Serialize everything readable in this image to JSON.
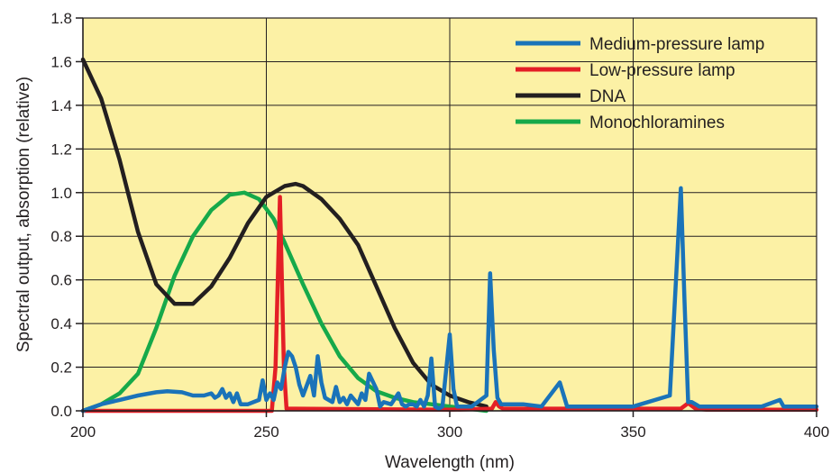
{
  "chart_data": {
    "type": "line",
    "xlabel": "Wavelength (nm)",
    "ylabel": "Spectral output, absorption (relative)",
    "xlim": [
      200,
      400
    ],
    "ylim": [
      0,
      1.8
    ],
    "x_ticks": [
      200,
      250,
      300,
      350,
      400
    ],
    "y_ticks": [
      0.0,
      0.2,
      0.4,
      0.6,
      0.8,
      1.0,
      1.2,
      1.4,
      1.6,
      1.8
    ],
    "x_tick_labels": [
      "200",
      "250",
      "300",
      "350",
      "400"
    ],
    "y_tick_labels": [
      "0.0",
      "0.2",
      "0.4",
      "0.6",
      "0.8",
      "1.0",
      "1.2",
      "1.4",
      "1.6",
      "1.8"
    ],
    "background_color": "#fcf1a5",
    "grid": true,
    "legend_position": "top-right",
    "series": [
      {
        "name": "Medium-pressure lamp",
        "color": "#1a73b9",
        "x": [
          200,
          205,
          210,
          215,
          220,
          223,
          227,
          230,
          233,
          235,
          236,
          237,
          238,
          239,
          240,
          241,
          242,
          243,
          245,
          248,
          249,
          250,
          251,
          252,
          253,
          254,
          255,
          256,
          257,
          258,
          259,
          260,
          262,
          263,
          264,
          265,
          266,
          268,
          269,
          270,
          271,
          272,
          273,
          275,
          276,
          277,
          278,
          280,
          281,
          282,
          284,
          286,
          287,
          288,
          289,
          290,
          291,
          292,
          293,
          294,
          295,
          296,
          297,
          298,
          300,
          301,
          302,
          303,
          304,
          306,
          310,
          311,
          312,
          313,
          314,
          315,
          316,
          320,
          325,
          330,
          332,
          334,
          336,
          340,
          350,
          360,
          363,
          364,
          365,
          366,
          367,
          368,
          370,
          375,
          380,
          385,
          390,
          391,
          392,
          395,
          400
        ],
        "values": [
          0.0,
          0.03,
          0.05,
          0.07,
          0.085,
          0.09,
          0.085,
          0.07,
          0.07,
          0.08,
          0.06,
          0.07,
          0.1,
          0.06,
          0.08,
          0.04,
          0.08,
          0.03,
          0.03,
          0.05,
          0.14,
          0.05,
          0.08,
          0.05,
          0.13,
          0.1,
          0.2,
          0.27,
          0.25,
          0.2,
          0.12,
          0.07,
          0.16,
          0.07,
          0.25,
          0.13,
          0.06,
          0.04,
          0.11,
          0.04,
          0.06,
          0.03,
          0.07,
          0.03,
          0.08,
          0.05,
          0.17,
          0.1,
          0.02,
          0.04,
          0.03,
          0.08,
          0.03,
          0.02,
          0.03,
          0.03,
          0.02,
          0.05,
          0.02,
          0.07,
          0.24,
          0.02,
          0.01,
          0.02,
          0.35,
          0.1,
          0.02,
          0.02,
          0.02,
          0.02,
          0.07,
          0.63,
          0.28,
          0.06,
          0.03,
          0.03,
          0.03,
          0.03,
          0.02,
          0.13,
          0.02,
          0.02,
          0.02,
          0.02,
          0.02,
          0.07,
          1.02,
          0.5,
          0.04,
          0.04,
          0.03,
          0.02,
          0.02,
          0.02,
          0.02,
          0.02,
          0.05,
          0.02,
          0.02,
          0.02,
          0.02
        ]
      },
      {
        "name": "Low-pressure lamp",
        "color": "#e41f26",
        "x": [
          200,
          251.5,
          252.5,
          253.7,
          254.8,
          255.5,
          258,
          300,
          311.5,
          312.5,
          313.5,
          314.5,
          320,
          363,
          365,
          367,
          370,
          400
        ],
        "values": [
          0.0,
          0.0,
          0.2,
          0.98,
          0.2,
          0.01,
          0.01,
          0.005,
          0.01,
          0.04,
          0.02,
          0.01,
          0.01,
          0.01,
          0.035,
          0.01,
          0.005,
          0.005
        ]
      },
      {
        "name": "DNA",
        "color": "#231f20",
        "x": [
          200,
          205,
          210,
          215,
          220,
          225,
          230,
          235,
          240,
          245,
          250,
          255,
          258,
          260,
          265,
          270,
          275,
          280,
          285,
          290,
          295,
          300,
          305,
          310
        ],
        "values": [
          1.61,
          1.43,
          1.15,
          0.82,
          0.58,
          0.49,
          0.49,
          0.57,
          0.7,
          0.86,
          0.98,
          1.03,
          1.04,
          1.03,
          0.97,
          0.88,
          0.76,
          0.57,
          0.38,
          0.22,
          0.12,
          0.07,
          0.04,
          0.02
        ]
      },
      {
        "name": "Monochloramines",
        "color": "#16a94a",
        "x": [
          200,
          205,
          210,
          215,
          220,
          225,
          230,
          235,
          240,
          244,
          248,
          252,
          255,
          260,
          265,
          270,
          275,
          280,
          285,
          290,
          295,
          300,
          305,
          310
        ],
        "values": [
          0.0,
          0.03,
          0.08,
          0.17,
          0.38,
          0.62,
          0.8,
          0.92,
          0.99,
          1.0,
          0.97,
          0.88,
          0.77,
          0.58,
          0.4,
          0.25,
          0.15,
          0.09,
          0.06,
          0.04,
          0.03,
          0.02,
          0.01,
          0.0
        ]
      }
    ]
  }
}
